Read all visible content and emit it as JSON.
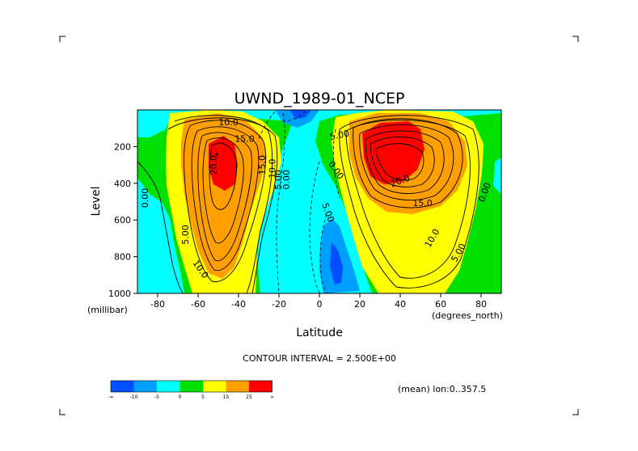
{
  "chart_data": {
    "type": "heatmap",
    "title": "UWND_1989-01_NCEP",
    "xlabel": "Latitude",
    "ylabel": "Level",
    "x_unit_note": "(degrees_north)",
    "y_unit_note": "(millibar)",
    "xlim": [
      -90,
      90
    ],
    "ylim": [
      1000,
      0
    ],
    "x_ticks": [
      "-80",
      "-60",
      "-40",
      "-20",
      "0",
      "20",
      "40",
      "60",
      "80"
    ],
    "y_ticks": [
      "200",
      "400",
      "600",
      "800",
      "1000"
    ],
    "contour_interval_text": "CONTOUR INTERVAL = 2.500E+00",
    "mean_text": "(mean) lon:0..357.5",
    "colorbar": {
      "colors": [
        "#0050ff",
        "#00a0ff",
        "#00ffff",
        "#00e000",
        "#ffff00",
        "#ffa000",
        "#ff0000"
      ],
      "labels": [
        "-∞",
        "-10",
        "-5",
        "0",
        "5",
        "15",
        "25",
        "∞"
      ]
    },
    "contour_labels": [
      {
        "text": "10.0",
        "lat": -45,
        "lev": 70,
        "rot": 0
      },
      {
        "text": "15.0",
        "lat": -37,
        "lev": 160,
        "rot": 0
      },
      {
        "text": "20.0",
        "lat": -52,
        "lev": 300,
        "rot": -90
      },
      {
        "text": "15.0",
        "lat": -28,
        "lev": 300,
        "rot": -90
      },
      {
        "text": "10.0",
        "lat": -23,
        "lev": 320,
        "rot": -90
      },
      {
        "text": "5.00",
        "lat": -20,
        "lev": 380,
        "rot": -90
      },
      {
        "text": "0.00",
        "lat": -16,
        "lev": 380,
        "rot": -90
      },
      {
        "text": "0.00",
        "lat": -86,
        "lev": 480,
        "rot": -90
      },
      {
        "text": "5.00",
        "lat": -66,
        "lev": 680,
        "rot": -90
      },
      {
        "text": "10.0",
        "lat": -59,
        "lev": 870,
        "rot": 55
      },
      {
        "text": "5.00",
        "lat": 10,
        "lev": 140,
        "rot": -12
      },
      {
        "text": "0.00",
        "lat": 8,
        "lev": 330,
        "rot": 55
      },
      {
        "text": "5.00",
        "lat": 4,
        "lev": 560,
        "rot": 70
      },
      {
        "text": "20.0",
        "lat": 40,
        "lev": 390,
        "rot": -20
      },
      {
        "text": "15.0",
        "lat": 51,
        "lev": 510,
        "rot": 0
      },
      {
        "text": "10.0",
        "lat": 56,
        "lev": 700,
        "rot": -60
      },
      {
        "text": "5.00",
        "lat": 69,
        "lev": 780,
        "rot": -60
      },
      {
        "text": "0.00",
        "lat": 82,
        "lev": 450,
        "rot": -70
      }
    ]
  }
}
